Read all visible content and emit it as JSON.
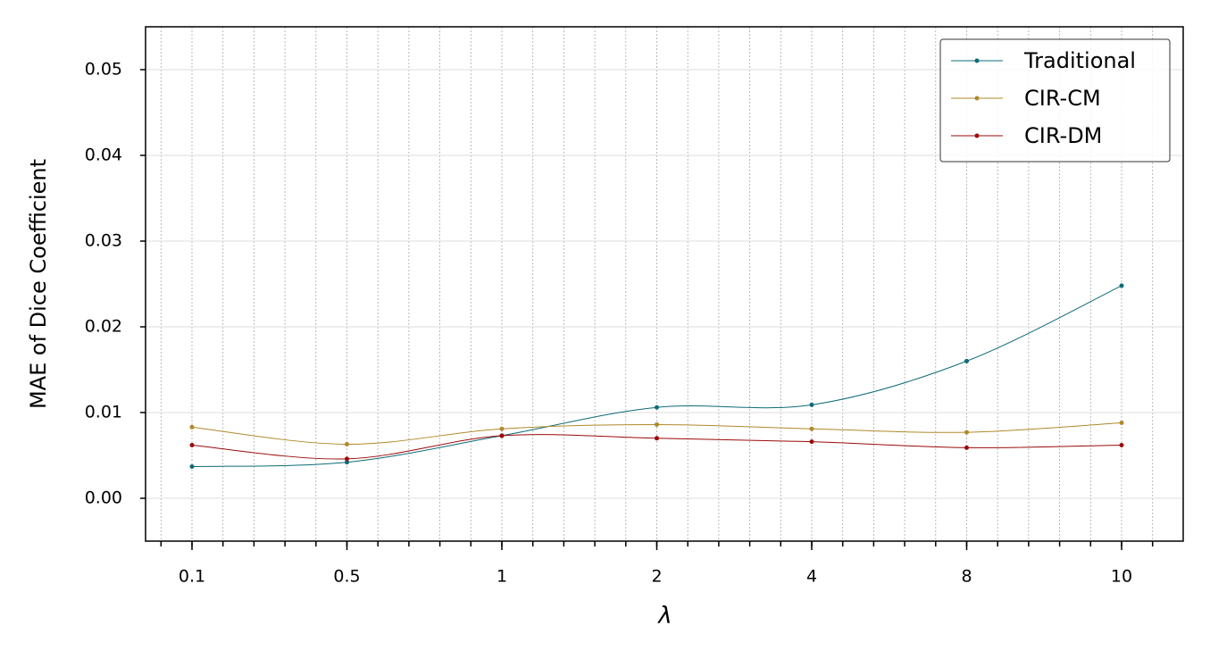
{
  "chart_data": {
    "type": "line",
    "x_label": "λ",
    "y_label": "MAE of Dice Coefficient",
    "categories": [
      "0.1",
      "0.5",
      "1",
      "2",
      "4",
      "8",
      "10"
    ],
    "series": [
      {
        "name": "Traditional",
        "color": "#0e6b77",
        "values": [
          0.0037,
          0.0042,
          0.0073,
          0.0106,
          0.0109,
          0.016,
          0.0248
        ]
      },
      {
        "name": "CIR-CM",
        "color": "#b0892a",
        "values": [
          0.0083,
          0.0063,
          0.0081,
          0.0086,
          0.0081,
          0.0077,
          0.0088
        ]
      },
      {
        "name": "CIR-DM",
        "color": "#9b0a0a",
        "values": [
          0.0062,
          0.0046,
          0.0073,
          0.007,
          0.0066,
          0.0059,
          0.0062
        ]
      }
    ],
    "ylim": [
      -0.005,
      0.055
    ],
    "yticks": [
      {
        "value": 0,
        "label": "0.00"
      },
      0.01,
      0.02,
      0.03,
      0.04,
      0.05
    ],
    "grid": true,
    "legend": "upper-right"
  }
}
